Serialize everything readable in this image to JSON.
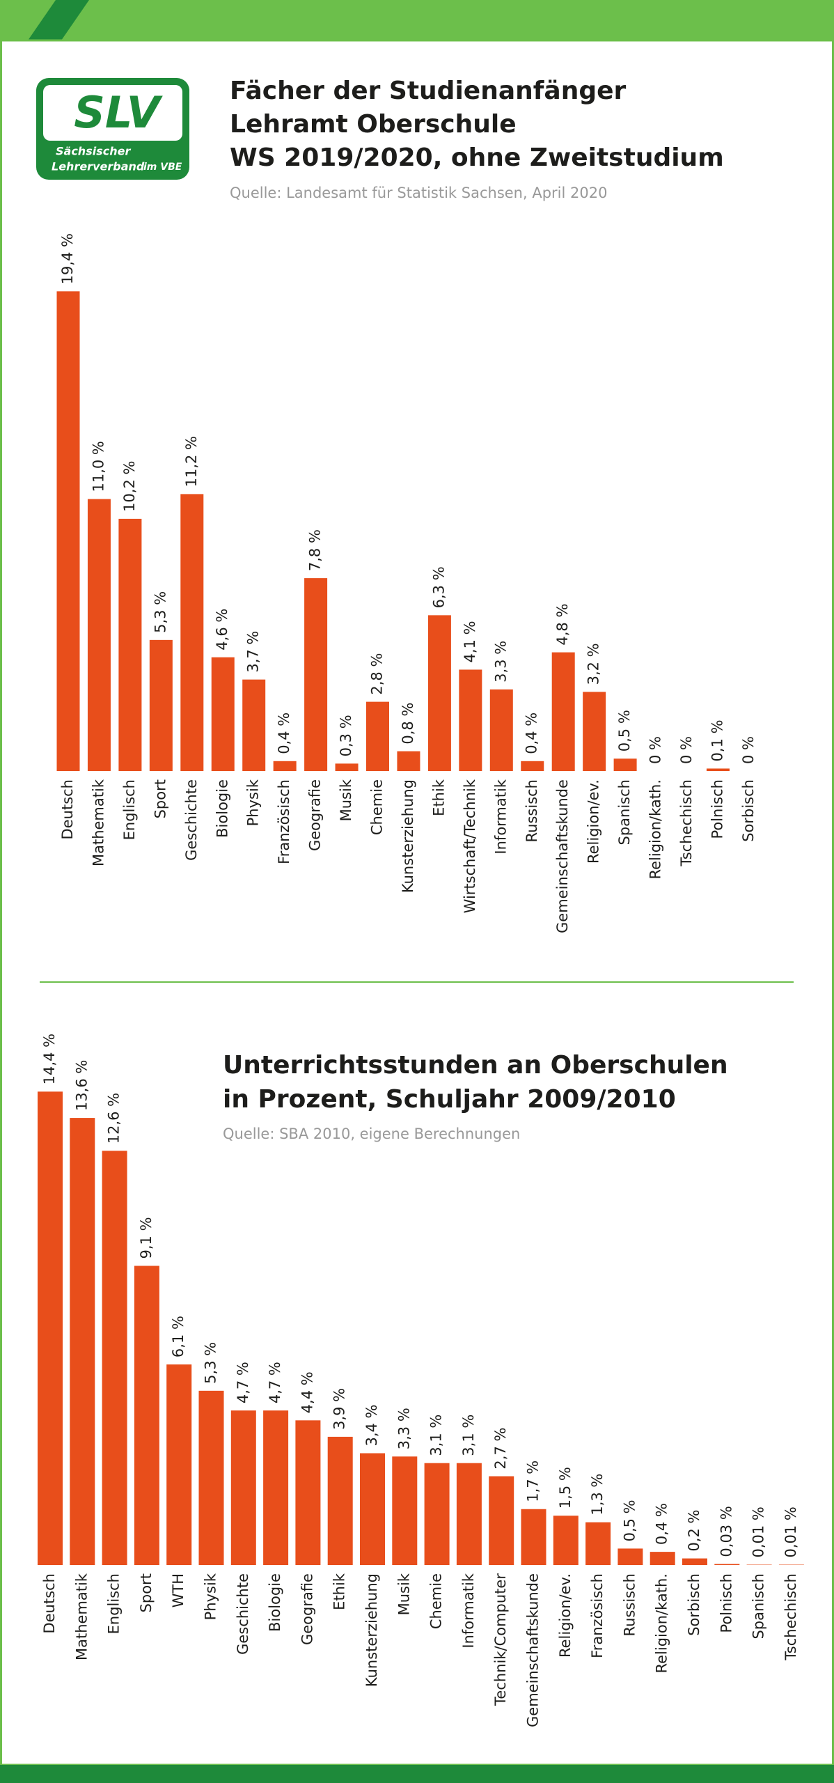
{
  "logo": {
    "mark": "SLV",
    "line1": "Sächsischer",
    "line2": "Lehrerverband",
    "line3": "im VBE"
  },
  "chart_data": [
    {
      "type": "bar",
      "title": [
        "Fächer der Studienanfänger",
        "Lehramt Oberschule",
        "WS 2019/2020, ohne Zweitstudium"
      ],
      "subtitle": "Quelle: Landesamt für Statistik Sachsen, April 2020",
      "color": "#e84e1b",
      "categories": [
        "Deutsch",
        "Mathematik",
        "Englisch",
        "Sport",
        "Geschichte",
        "Biologie",
        "Physik",
        "Französisch",
        "Geografie",
        "Musik",
        "Chemie",
        "Kunsterziehung",
        "Ethik",
        "Wirtschaft/Technik",
        "Informatik",
        "Russisch",
        "Gemeinschaftskunde",
        "Religion/ev.",
        "Spanisch",
        "Religion/kath.",
        "Tschechisch",
        "Polnisch",
        "Sorbisch"
      ],
      "values": [
        19.4,
        11.0,
        10.2,
        5.3,
        11.2,
        4.6,
        3.7,
        0.4,
        7.8,
        0.3,
        2.8,
        0.8,
        6.3,
        4.1,
        3.3,
        0.4,
        4.8,
        3.2,
        0.5,
        0,
        0,
        0.1,
        0
      ],
      "value_labels": [
        "19,4 %",
        "11,0 %",
        "10,2 %",
        "5,3 %",
        "11,2 %",
        "4,6 %",
        "3,7 %",
        "0,4 %",
        "7,8 %",
        "0,3 %",
        "2,8 %",
        "0,8 %",
        "6,3 %",
        "4,1 %",
        "3,3 %",
        "0,4 %",
        "4,8 %",
        "3,2 %",
        "0,5 %",
        "0 %",
        "0 %",
        "0,1 %",
        "0 %"
      ]
    },
    {
      "type": "bar",
      "title": [
        "Unterrichtsstunden an Oberschulen",
        "in Prozent, Schuljahr 2009/2010"
      ],
      "subtitle": "Quelle: SBA 2010, eigene Berechnungen",
      "color": "#e84e1b",
      "categories": [
        "Deutsch",
        "Mathematik",
        "Englisch",
        "Sport",
        "WTH",
        "Physik",
        "Geschichte",
        "Biologie",
        "Geografie",
        "Ethik",
        "Kunsterziehung",
        "Musik",
        "Chemie",
        "Informatik",
        "Technik/Computer",
        "Gemeinschaftskunde",
        "Religion/ev.",
        "Französisch",
        "Russisch",
        "Religion/kath.",
        "Sorbisch",
        "Polnisch",
        "Spanisch",
        "Tschechisch"
      ],
      "values": [
        14.4,
        13.6,
        12.6,
        9.1,
        6.1,
        5.3,
        4.7,
        4.7,
        4.4,
        3.9,
        3.4,
        3.3,
        3.1,
        3.1,
        2.7,
        1.7,
        1.5,
        1.3,
        0.5,
        0.4,
        0.2,
        0.03,
        0.01,
        0.01
      ],
      "value_labels": [
        "14,4 %",
        "13,6 %",
        "12,6 %",
        "9,1 %",
        "6,1 %",
        "5,3 %",
        "4,7 %",
        "4,7 %",
        "4,4 %",
        "3,9 %",
        "3,4 %",
        "3,3 %",
        "3,1 %",
        "3,1 %",
        "2,7 %",
        "1,7 %",
        "1,5 %",
        "1,3 %",
        "0,5 %",
        "0,4 %",
        "0,2 %",
        "0,03 %",
        "0,01 %",
        "0,01 %"
      ]
    }
  ]
}
